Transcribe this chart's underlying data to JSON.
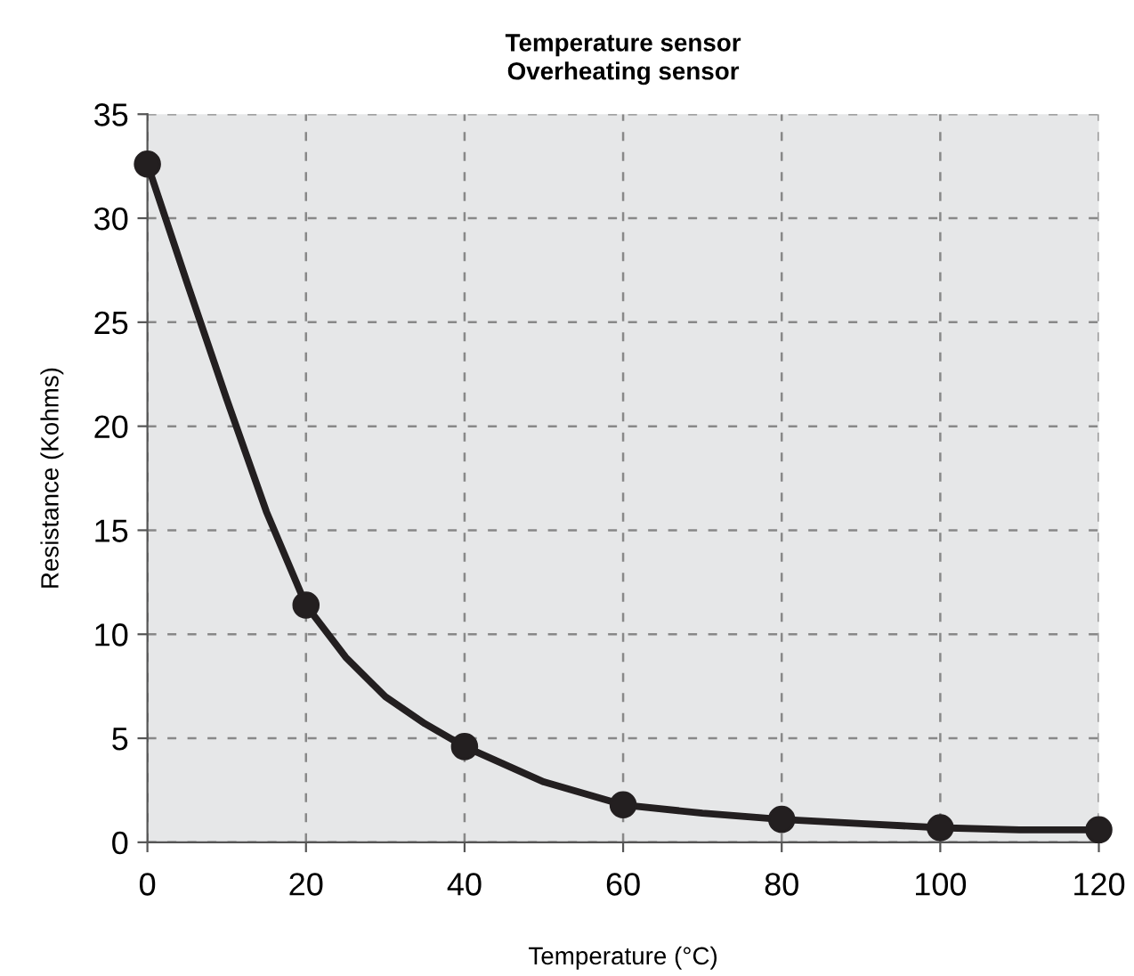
{
  "chart_data": {
    "type": "line",
    "title": "Temperature sensor\nOverheating sensor",
    "xlabel": "Temperature (°C)",
    "ylabel": "Resistance (Kohms)",
    "series": [
      {
        "marker": "none",
        "color": "#231f20",
        "x": [
          0,
          5,
          10,
          15,
          20,
          25,
          30,
          35,
          40,
          50,
          60,
          70,
          80,
          90,
          100,
          110,
          120
        ],
        "values": [
          32.6,
          26.9,
          21.3,
          15.9,
          11.4,
          8.9,
          7.0,
          5.7,
          4.6,
          2.9,
          1.8,
          1.4,
          1.1,
          0.9,
          0.7,
          0.6,
          0.6
        ]
      },
      {
        "type": "scatter",
        "marker": "circle",
        "color": "#231f20",
        "x": [
          0,
          20,
          40,
          60,
          80,
          100,
          120
        ],
        "values": [
          32.6,
          11.4,
          4.6,
          1.8,
          1.1,
          0.7,
          0.6
        ]
      }
    ],
    "xlim": [
      0,
      120
    ],
    "xticks": [
      0,
      20,
      40,
      60,
      80,
      100,
      120
    ],
    "ylim": [
      0,
      35
    ],
    "yticks": [
      0,
      5,
      10,
      15,
      20,
      25,
      30,
      35
    ],
    "grid": true,
    "line_style": "solid"
  }
}
